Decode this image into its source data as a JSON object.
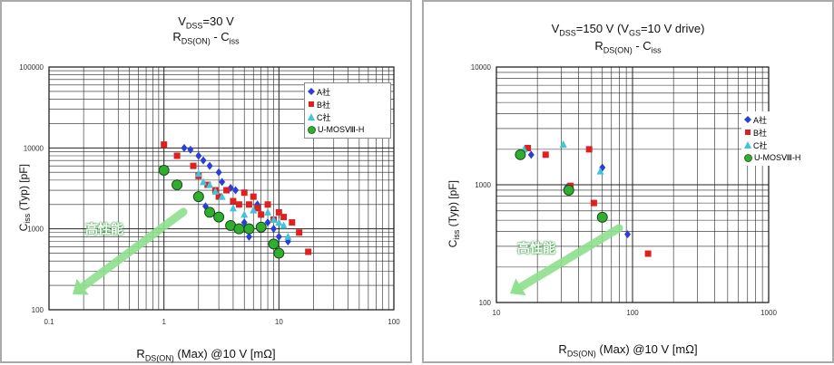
{
  "charts": [
    {
      "title_line1": "V_DSS=30 V",
      "title_line2": "R_DS(ON) - C_iss",
      "xlabel": "R_DS(ON) (Max) @10 V [mΩ]",
      "ylabel": "C_iss (Typ) [pF]",
      "annotation": "高性能",
      "legend": [
        "A社",
        "B社",
        "C社",
        "U-MOSⅧ-H"
      ],
      "xticks": [
        "0.1",
        "1",
        "10",
        "100"
      ],
      "yticks": [
        "100",
        "1000",
        "10000",
        "100000"
      ]
    },
    {
      "title_line1": "V_DSS=150 V (V_GS=10 V drive)",
      "title_line2": "R_DS(ON) - C_iss",
      "xlabel": "R_DS(ON) (Max) @10 V [mΩ]",
      "ylabel": "C_iss (Typ) [pF]",
      "annotation": "高性能",
      "legend": [
        "A社",
        "B社",
        "C社",
        "U-MOSⅧ-H"
      ],
      "xticks": [
        "10",
        "100",
        "1000"
      ],
      "yticks": [
        "100",
        "1000",
        "10000"
      ]
    }
  ],
  "colors": {
    "A社": "#2a3fd6",
    "B社": "#e01f1f",
    "C社": "#3fc4d8",
    "U-MOSⅧ-H": "#2fae2f",
    "arrow": "#8fe08f"
  },
  "chart_data": [
    {
      "type": "scatter",
      "xscale": "log",
      "yscale": "log",
      "xlim": [
        0.1,
        100
      ],
      "ylim": [
        100,
        100000
      ],
      "grid": true,
      "legend_position": "top-right",
      "series": [
        {
          "name": "A社",
          "marker": "diamond",
          "points": [
            [
              1.5,
              10000
            ],
            [
              1.7,
              9500
            ],
            [
              2.0,
              8000
            ],
            [
              2.2,
              7000
            ],
            [
              2.5,
              6000
            ],
            [
              3.0,
              5000
            ],
            [
              3.2,
              3800
            ],
            [
              3.8,
              3200
            ],
            [
              4.2,
              3000
            ],
            [
              2.3,
              1900
            ],
            [
              2.6,
              1600
            ],
            [
              5.0,
              1200
            ],
            [
              5.5,
              800
            ],
            [
              6.5,
              2000
            ],
            [
              7.0,
              1500
            ],
            [
              8.0,
              1200
            ],
            [
              9.0,
              1000
            ],
            [
              10.0,
              800
            ],
            [
              12.0,
              700
            ]
          ]
        },
        {
          "name": "B社",
          "marker": "square",
          "points": [
            [
              1.0,
              11000
            ],
            [
              1.3,
              8000
            ],
            [
              1.8,
              6000
            ],
            [
              2.0,
              4500
            ],
            [
              2.4,
              3500
            ],
            [
              2.8,
              3000
            ],
            [
              3.0,
              2500
            ],
            [
              3.5,
              3000
            ],
            [
              4.0,
              2200
            ],
            [
              4.5,
              2000
            ],
            [
              5.0,
              2800
            ],
            [
              5.5,
              2000
            ],
            [
              6.0,
              2500
            ],
            [
              6.5,
              1800
            ],
            [
              7.0,
              1500
            ],
            [
              8.0,
              2000
            ],
            [
              9.0,
              1300
            ],
            [
              10.0,
              1600
            ],
            [
              11.0,
              1400
            ],
            [
              13.0,
              1200
            ],
            [
              15.0,
              900
            ],
            [
              18.0,
              520
            ]
          ]
        },
        {
          "name": "C社",
          "marker": "triangle",
          "points": [
            [
              2.0,
              4800
            ],
            [
              2.2,
              3800
            ],
            [
              2.5,
              3500
            ],
            [
              2.8,
              2900
            ],
            [
              3.2,
              2500
            ],
            [
              4.0,
              1800
            ],
            [
              5.0,
              1500
            ],
            [
              6.0,
              1700
            ],
            [
              8.0,
              1600
            ],
            [
              9.0,
              1300
            ],
            [
              10.0,
              1200
            ],
            [
              11.0,
              1100
            ],
            [
              12.0,
              800
            ]
          ]
        },
        {
          "name": "U-MOSⅧ-H",
          "marker": "circle",
          "points": [
            [
              1.0,
              5300
            ],
            [
              1.3,
              3500
            ],
            [
              2.0,
              2500
            ],
            [
              2.5,
              1600
            ],
            [
              3.0,
              1400
            ],
            [
              3.8,
              1100
            ],
            [
              4.5,
              1000
            ],
            [
              5.5,
              1000
            ],
            [
              7.0,
              1050
            ],
            [
              9.0,
              650
            ],
            [
              10.0,
              500
            ]
          ]
        }
      ]
    },
    {
      "type": "scatter",
      "xscale": "log",
      "yscale": "log",
      "xlim": [
        10,
        1000
      ],
      "ylim": [
        100,
        10000
      ],
      "grid": true,
      "legend_position": "right",
      "series": [
        {
          "name": "A社",
          "marker": "diamond",
          "points": [
            [
              18,
              1800
            ],
            [
              33,
              950
            ],
            [
              35,
              880
            ],
            [
              60,
              1400
            ],
            [
              92,
              380
            ]
          ]
        },
        {
          "name": "B社",
          "marker": "square",
          "points": [
            [
              17,
              2050
            ],
            [
              23,
              1800
            ],
            [
              35,
              980
            ],
            [
              48,
              2000
            ],
            [
              52,
              700
            ],
            [
              130,
              260
            ]
          ]
        },
        {
          "name": "C社",
          "marker": "triangle",
          "points": [
            [
              16,
              2000
            ],
            [
              31,
              2200
            ],
            [
              58,
              1300
            ]
          ]
        },
        {
          "name": "U-MOSⅧ-H",
          "marker": "circle",
          "points": [
            [
              15,
              1800
            ],
            [
              34,
              900
            ],
            [
              60,
              530
            ]
          ]
        }
      ]
    }
  ]
}
